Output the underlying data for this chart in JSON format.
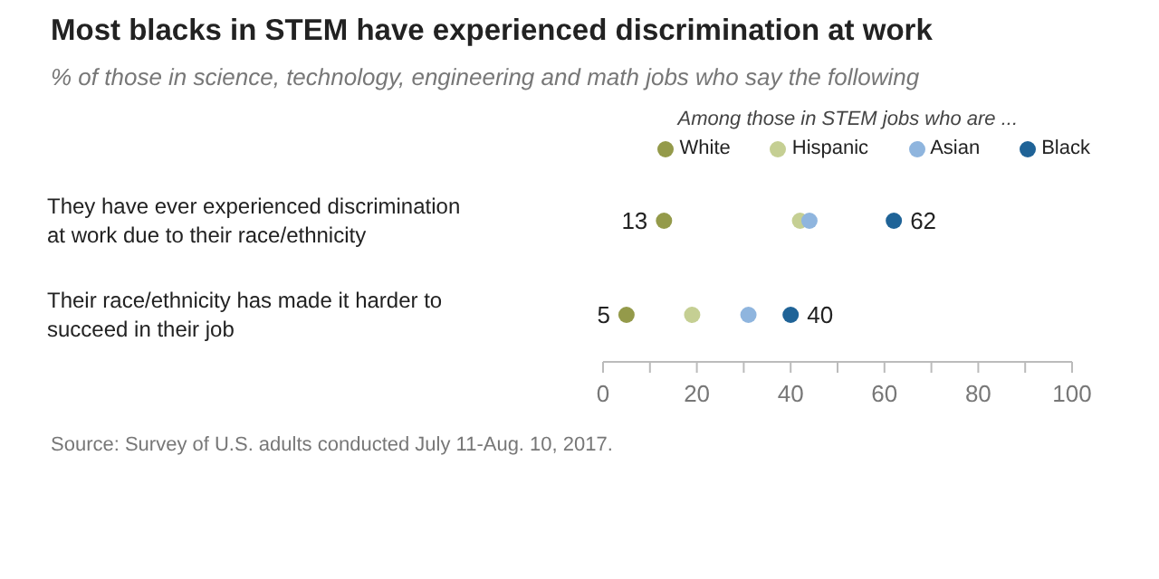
{
  "chart_data": {
    "type": "scatter",
    "orientation": "horizontal",
    "title": "Most blacks in STEM have experienced discrimination at work",
    "subtitle": "% of those in science, technology, engineering and math jobs who say the following",
    "legend_title": "Among those in STEM jobs who are ...",
    "legend": "top right",
    "marker": "circle",
    "grid": false,
    "categories": [
      "They have ever experienced discrimination at work due to their race/ethnicity",
      "Their race/ethnicity has made it harder to succeed in their job"
    ],
    "series": [
      {
        "name": "White",
        "color": "#949a4a",
        "values": [
          13,
          5
        ],
        "value_labels": [
          "13",
          "5"
        ]
      },
      {
        "name": "Hispanic",
        "color": "#c5cf93",
        "values": [
          42,
          19
        ],
        "value_labels": [
          null,
          null
        ]
      },
      {
        "name": "Asian",
        "color": "#8fb5de",
        "values": [
          44,
          31
        ],
        "value_labels": [
          null,
          null
        ]
      },
      {
        "name": "Black",
        "color": "#1f6397",
        "values": [
          62,
          40
        ],
        "value_labels": [
          "62",
          "40"
        ]
      }
    ],
    "xlim": [
      0,
      100
    ],
    "xticks": [
      0,
      {
        "value": 10,
        "label": null
      },
      20,
      {
        "value": 30,
        "label": null
      },
      40,
      {
        "value": 50,
        "label": null
      },
      60,
      {
        "value": 70,
        "label": null
      },
      80,
      {
        "value": 90,
        "label": null
      },
      100
    ],
    "annotations": [
      "Source: Survey of U.S. adults conducted July 11-Aug. 10, 2017."
    ]
  }
}
